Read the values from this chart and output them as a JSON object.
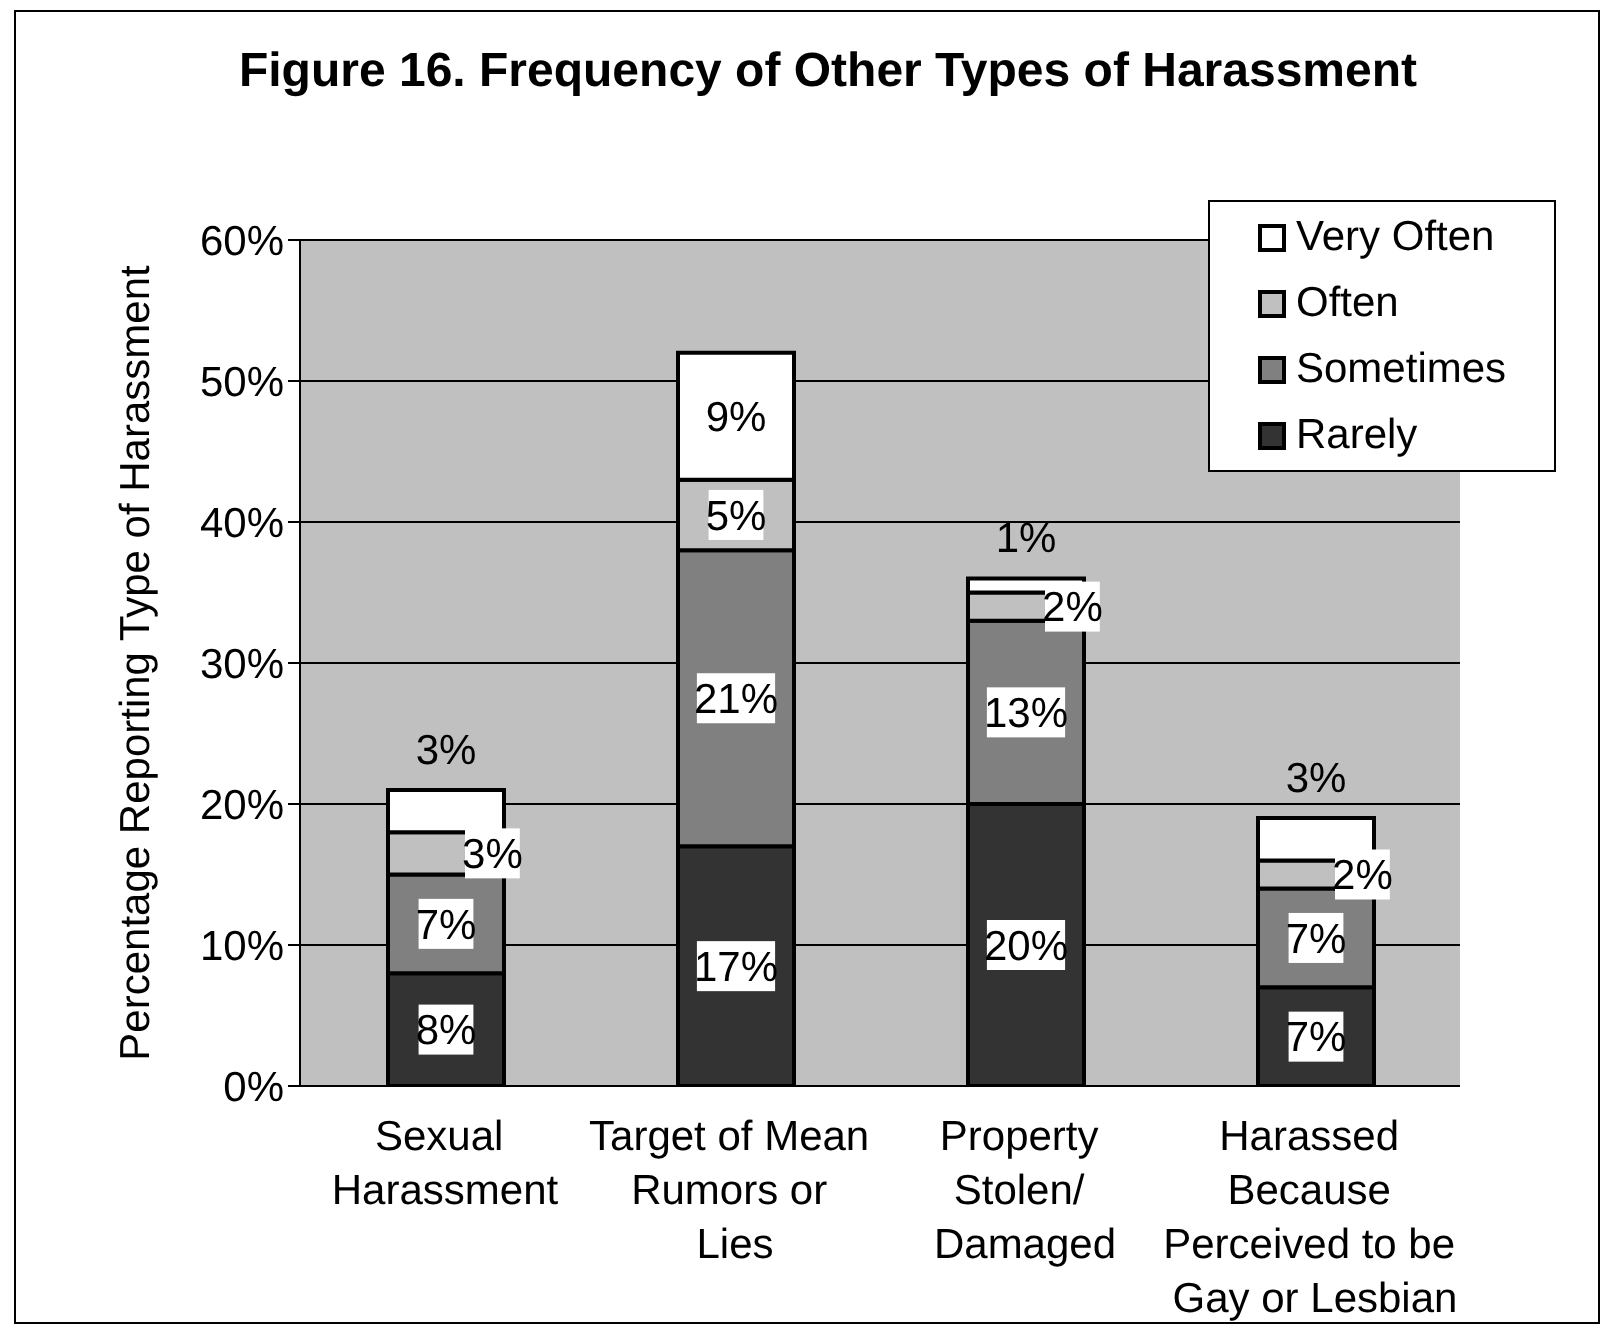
{
  "chart_data": {
    "type": "bar",
    "title": "Figure 16. Frequency of Other Types of Harassment",
    "ylabel": "Percentage Reporting Type of Harassment",
    "categories": [
      "Sexual\nHarassment",
      "Target of Mean\nRumors or\nLies",
      "Property\nStolen/\nDamaged",
      "Harassed\nBecause\nPerceived to be\nGay or Lesbian"
    ],
    "series": [
      {
        "name": "Rarely",
        "color": "#333333",
        "values": [
          8,
          17,
          20,
          7
        ],
        "value_labels": [
          "8%",
          "17%",
          "20%",
          "7%"
        ]
      },
      {
        "name": "Sometimes",
        "color": "#808080",
        "values": [
          7,
          21,
          13,
          7
        ],
        "value_labels": [
          "7%",
          "21%",
          "13%",
          "7%"
        ]
      },
      {
        "name": "Often",
        "color": "#c0c0c0",
        "values": [
          3,
          5,
          2,
          2
        ],
        "value_labels": [
          "3%",
          "5%",
          "2%",
          "2%"
        ]
      },
      {
        "name": "Very Often",
        "color": "#ffffff",
        "values": [
          3,
          9,
          1,
          3
        ],
        "value_labels": [
          "3%",
          "9%",
          "1%",
          "3%"
        ]
      }
    ],
    "stacked": true,
    "ylim": [
      0,
      60
    ],
    "yticks": [
      {
        "value": 0,
        "label": "0%"
      },
      {
        "value": 10,
        "label": "10%"
      },
      {
        "value": 20,
        "label": "20%"
      },
      {
        "value": 30,
        "label": "30%"
      },
      {
        "value": 40,
        "label": "40%"
      },
      {
        "value": 50,
        "label": "50%"
      },
      {
        "value": 60,
        "label": "60%"
      }
    ],
    "grid": "y",
    "legend": "top right"
  }
}
